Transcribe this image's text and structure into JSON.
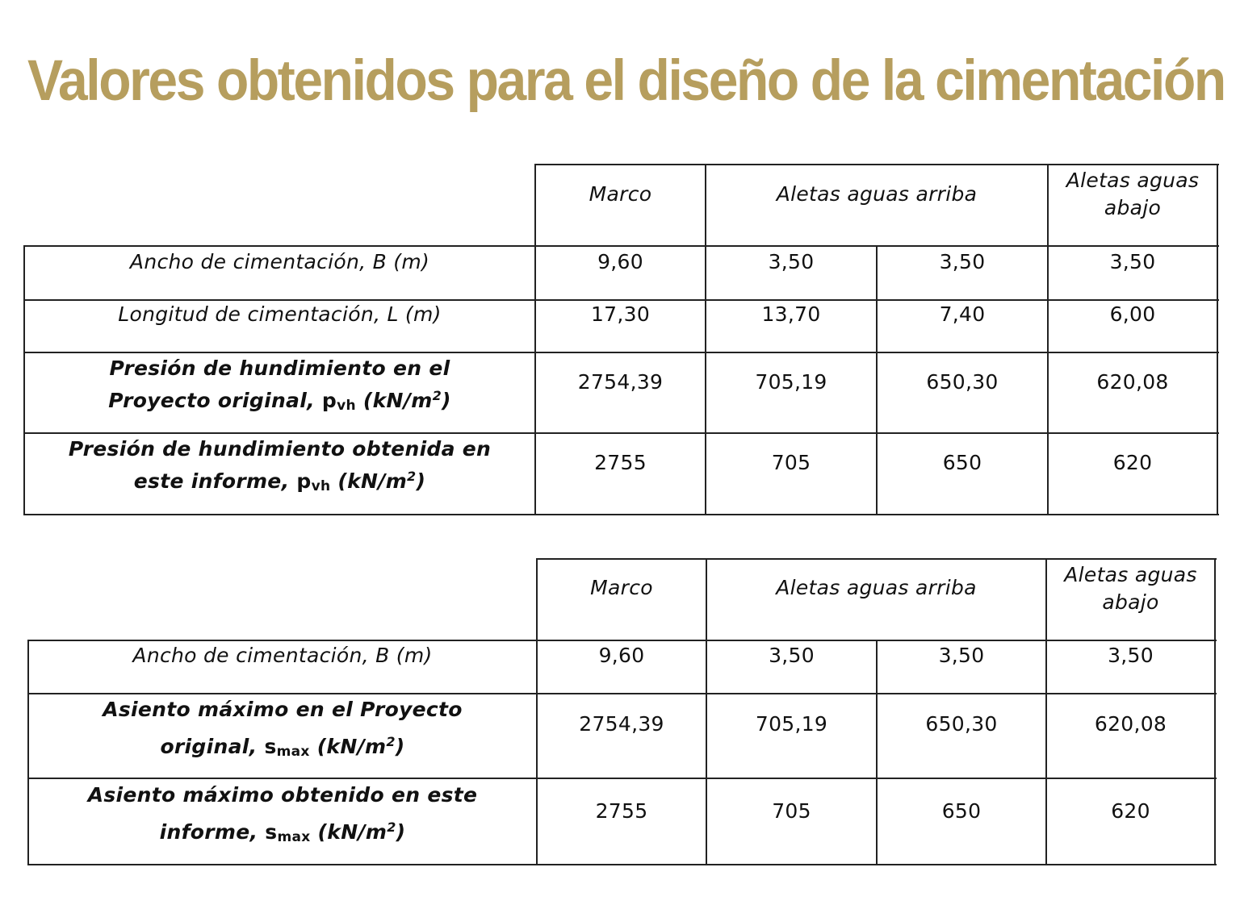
{
  "title": "Valores obtenidos para el diseño de la cimentación",
  "table1": {
    "headers": [
      "Marco",
      "Aletas aguas arriba",
      "Aletas aguas",
      "abajo"
    ],
    "rows": [
      {
        "label": "Ancho de cimentación, B (m)",
        "values": [
          "9,60",
          "3,50",
          "3,50",
          "3,50"
        ]
      },
      {
        "label": "Longitud de cimentación, L (m)",
        "values": [
          "17,30",
          "13,70",
          "7,40",
          "6,00"
        ]
      },
      {
        "label_l1": "Presión de hundimiento en el",
        "label_l2": "Proyecto original, ",
        "sub": "vh",
        "values": [
          "2754,39",
          "705,19",
          "650,30",
          "620,08"
        ]
      },
      {
        "label_l1": "Presión de hundimiento obtenida en",
        "label_l2": "este informe, ",
        "sub": "vh",
        "values": [
          "2755",
          "705",
          "650",
          "620"
        ]
      }
    ],
    "symbol": "p",
    "unit_a": "(kN/m",
    "unit_sup": "2",
    "unit_b": ")"
  },
  "table2": {
    "headers": [
      "Marco",
      "Aletas aguas arriba",
      "Aletas aguas",
      "abajo"
    ],
    "rows": [
      {
        "label": "Ancho de cimentación, B (m)",
        "values": [
          "9,60",
          "3,50",
          "3,50",
          "3,50"
        ]
      },
      {
        "label_l1": "Asiento máximo en el Proyecto",
        "label_l2": "original, ",
        "sub": "max",
        "values": [
          "2754,39",
          "705,19",
          "650,30",
          "620,08"
        ]
      },
      {
        "label_l1": "Asiento máximo obtenido en este",
        "label_l2": "informe, ",
        "sub": "max",
        "values": [
          "2755",
          "705",
          "650",
          "620"
        ]
      }
    ],
    "symbol": "s",
    "unit_a": "(kN/m",
    "unit_sup": "2",
    "unit_b": ")"
  }
}
